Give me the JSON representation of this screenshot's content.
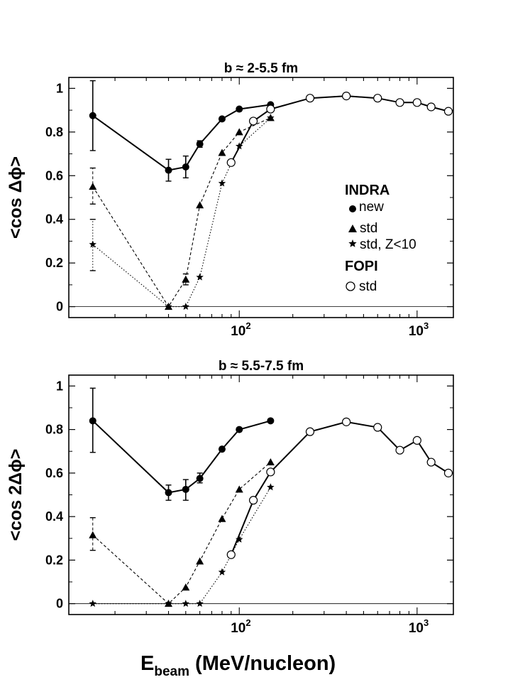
{
  "figure": {
    "xlabel_main": "E",
    "xlabel_sub": "beam",
    "xlabel_unit": " (MeV/nucleon)"
  },
  "legend": {
    "group1": "INDRA",
    "new": "new",
    "std": "std",
    "std_z": "std, Z<10",
    "group2": "FOPI",
    "fopi_std": "std"
  },
  "chart_data": [
    {
      "type": "line",
      "title": "b ≈ 2-5.5 fm",
      "ylabel": "<cos Δϕ>",
      "xscale": "log",
      "xlim": [
        11,
        1600
      ],
      "ylim": [
        -0.05,
        1.05
      ],
      "yticks": [
        0,
        0.2,
        0.4,
        0.6,
        0.8,
        1
      ],
      "ytick_labels": [
        "0",
        "0.2",
        "0.4",
        "0.6",
        "0.8",
        "1"
      ],
      "xtick_labels": [
        {
          "base": "10",
          "exp": "2",
          "value": 100
        },
        {
          "base": "10",
          "exp": "3",
          "value": 1000
        }
      ],
      "legend_position": "right",
      "series": [
        {
          "name": "new",
          "group": "INDRA",
          "marker": "filled-circle",
          "line": "solid",
          "points": [
            [
              15,
              0.875
            ],
            [
              40,
              0.625
            ],
            [
              50,
              0.64
            ],
            [
              60,
              0.745
            ],
            [
              80,
              0.86
            ],
            [
              100,
              0.905
            ],
            [
              150,
              0.925
            ]
          ],
          "errors": [
            [
              15,
              0.715,
              1.035
            ],
            [
              40,
              0.575,
              0.675
            ],
            [
              50,
              0.59,
              0.69
            ],
            [
              60,
              0.73,
              0.76
            ]
          ]
        },
        {
          "name": "std",
          "group": "INDRA",
          "marker": "filled-triangle",
          "line": "dashed",
          "points": [
            [
              15,
              0.55
            ],
            [
              40,
              0.0
            ],
            [
              50,
              0.125
            ],
            [
              60,
              0.465
            ],
            [
              80,
              0.705
            ],
            [
              100,
              0.8
            ],
            [
              150,
              0.865
            ]
          ],
          "errors": [
            [
              15,
              0.47,
              0.635
            ],
            [
              50,
              0.1,
              0.15
            ]
          ]
        },
        {
          "name": "std, Z<10",
          "group": "INDRA",
          "marker": "star",
          "line": "dotted",
          "points": [
            [
              15,
              0.285
            ],
            [
              40,
              0.0
            ],
            [
              50,
              0.0
            ],
            [
              60,
              0.135
            ],
            [
              80,
              0.565
            ],
            [
              100,
              0.735
            ],
            [
              150,
              0.865
            ]
          ],
          "errors": [
            [
              15,
              0.165,
              0.4
            ]
          ]
        },
        {
          "name": "std",
          "group": "FOPI",
          "marker": "open-circle",
          "line": "solid",
          "points": [
            [
              90,
              0.66
            ],
            [
              120,
              0.85
            ],
            [
              150,
              0.905
            ],
            [
              250,
              0.955
            ],
            [
              400,
              0.965
            ],
            [
              600,
              0.955
            ],
            [
              800,
              0.935
            ],
            [
              1000,
              0.935
            ],
            [
              1200,
              0.915
            ],
            [
              1500,
              0.895
            ]
          ]
        }
      ]
    },
    {
      "type": "line",
      "title": "b ≈ 5.5-7.5 fm",
      "ylabel": "<cos 2Δϕ>",
      "xscale": "log",
      "xlim": [
        11,
        1600
      ],
      "ylim": [
        -0.05,
        1.05
      ],
      "yticks": [
        0,
        0.2,
        0.4,
        0.6,
        0.8,
        1
      ],
      "ytick_labels": [
        "0",
        "0.2",
        "0.4",
        "0.6",
        "0.8",
        "1"
      ],
      "xtick_labels": [
        {
          "base": "10",
          "exp": "2",
          "value": 100
        },
        {
          "base": "10",
          "exp": "3",
          "value": 1000
        }
      ],
      "series": [
        {
          "name": "new",
          "group": "INDRA",
          "marker": "filled-circle",
          "line": "solid",
          "points": [
            [
              15,
              0.84
            ],
            [
              40,
              0.51
            ],
            [
              50,
              0.525
            ],
            [
              60,
              0.575
            ],
            [
              80,
              0.71
            ],
            [
              100,
              0.8
            ],
            [
              150,
              0.84
            ]
          ],
          "errors": [
            [
              15,
              0.695,
              0.99
            ],
            [
              40,
              0.475,
              0.545
            ],
            [
              50,
              0.475,
              0.57
            ],
            [
              60,
              0.555,
              0.6
            ]
          ]
        },
        {
          "name": "std",
          "group": "INDRA",
          "marker": "filled-triangle",
          "line": "dashed",
          "points": [
            [
              15,
              0.315
            ],
            [
              40,
              0.0
            ],
            [
              50,
              0.075
            ],
            [
              60,
              0.195
            ],
            [
              80,
              0.39
            ],
            [
              100,
              0.525
            ],
            [
              150,
              0.65
            ]
          ],
          "errors": [
            [
              15,
              0.245,
              0.395
            ]
          ]
        },
        {
          "name": "std, Z<10",
          "group": "INDRA",
          "marker": "star",
          "line": "dotted",
          "points": [
            [
              15,
              0.0
            ],
            [
              40,
              0.0
            ],
            [
              50,
              0.0
            ],
            [
              60,
              0.0
            ],
            [
              80,
              0.145
            ],
            [
              100,
              0.295
            ],
            [
              150,
              0.535
            ]
          ]
        },
        {
          "name": "std",
          "group": "FOPI",
          "marker": "open-circle",
          "line": "solid",
          "points": [
            [
              90,
              0.225
            ],
            [
              120,
              0.475
            ],
            [
              150,
              0.605
            ],
            [
              250,
              0.79
            ],
            [
              400,
              0.835
            ],
            [
              600,
              0.81
            ],
            [
              800,
              0.705
            ],
            [
              1000,
              0.75
            ],
            [
              1200,
              0.65
            ],
            [
              1500,
              0.6
            ]
          ]
        }
      ]
    }
  ]
}
